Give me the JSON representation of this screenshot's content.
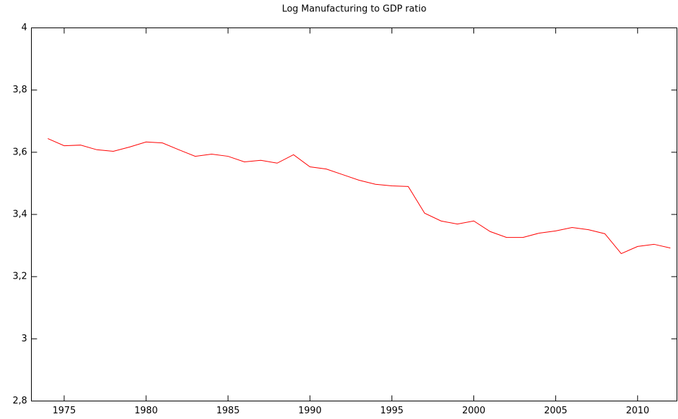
{
  "chart_data": {
    "type": "line",
    "title": "Log Manufacturing to GDP ratio",
    "x": [
      1974,
      1975,
      1976,
      1977,
      1978,
      1979,
      1980,
      1981,
      1982,
      1983,
      1984,
      1985,
      1986,
      1987,
      1988,
      1989,
      1990,
      1991,
      1992,
      1993,
      1994,
      1995,
      1996,
      1997,
      1998,
      1999,
      2000,
      2001,
      2002,
      2003,
      2004,
      2005,
      2006,
      2007,
      2008,
      2009,
      2010,
      2011,
      2012
    ],
    "values": [
      3.644,
      3.621,
      3.623,
      3.608,
      3.603,
      3.617,
      3.633,
      3.63,
      3.608,
      3.587,
      3.594,
      3.587,
      3.569,
      3.574,
      3.565,
      3.592,
      3.553,
      3.546,
      3.528,
      3.51,
      3.497,
      3.492,
      3.49,
      3.404,
      3.379,
      3.369,
      3.379,
      3.345,
      3.326,
      3.326,
      3.34,
      3.347,
      3.358,
      3.351,
      3.338,
      3.274,
      3.297,
      3.304,
      3.292
    ],
    "color": "#ff0000",
    "xlim": [
      1973,
      2012.4
    ],
    "xticks": [
      1975,
      1980,
      1985,
      1990,
      1995,
      2000,
      2005,
      2010
    ],
    "ylim": [
      2.8,
      4
    ],
    "yticks": [
      {
        "value": 2.8,
        "label": "2,8"
      },
      3,
      {
        "value": 3.2,
        "label": "3,2"
      },
      {
        "value": 3.4,
        "label": "3,4"
      },
      {
        "value": 3.6,
        "label": "3,6"
      },
      {
        "value": 3.8,
        "label": "3,8"
      },
      4
    ],
    "grid": false
  }
}
